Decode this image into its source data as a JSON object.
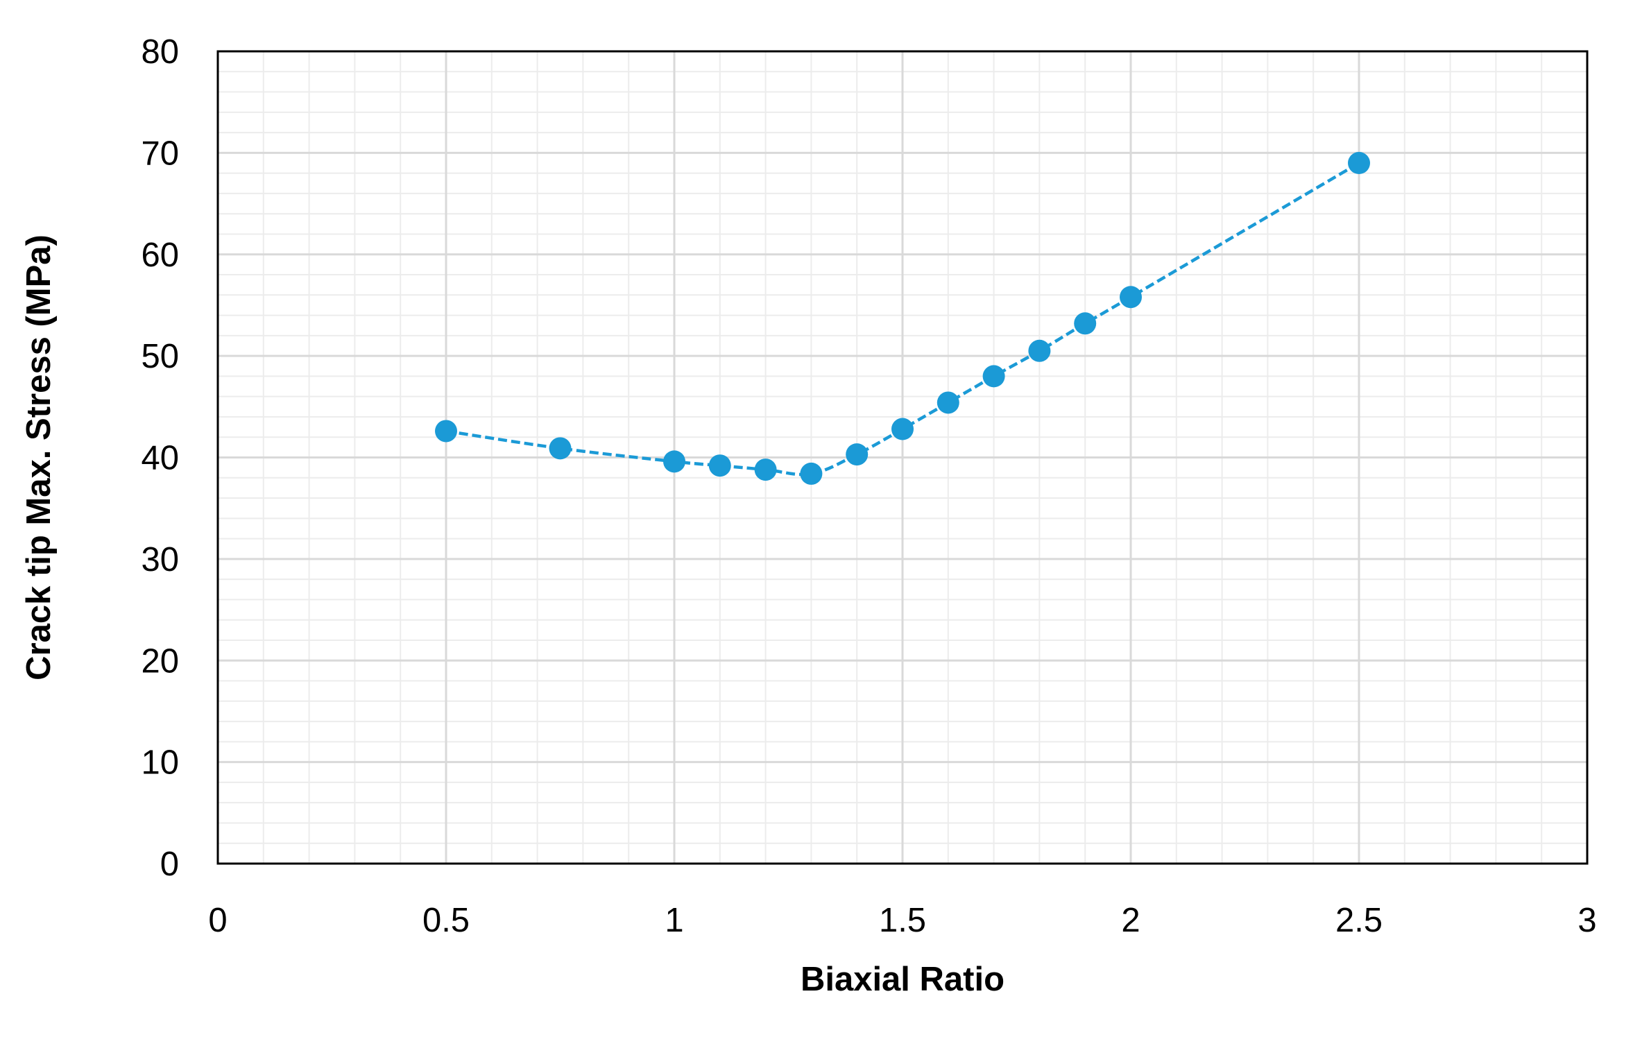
{
  "chart_data": {
    "type": "scatter",
    "title": "",
    "xlabel": "Biaxial Ratio",
    "ylabel": "Crack tip Max. Stress (MPa)",
    "xlim": [
      0,
      3
    ],
    "ylim": [
      0,
      80
    ],
    "x_ticks": [
      "0",
      "0.5",
      "1",
      "1.5",
      "2",
      "2.5",
      "3"
    ],
    "y_ticks": [
      "0",
      "10",
      "20",
      "30",
      "40",
      "50",
      "60",
      "70",
      "80"
    ],
    "grid": {
      "major": true,
      "minor": true
    },
    "legend": "none",
    "series": [
      {
        "color": "#1b9ad6",
        "line_style": "dashed",
        "marker": "circle",
        "points": [
          {
            "x": 0.5,
            "y": 42.6
          },
          {
            "x": 0.75,
            "y": 40.9
          },
          {
            "x": 1.0,
            "y": 39.6
          },
          {
            "x": 1.1,
            "y": 39.2
          },
          {
            "x": 1.2,
            "y": 38.8
          },
          {
            "x": 1.3,
            "y": 38.4
          },
          {
            "x": 1.4,
            "y": 40.3
          },
          {
            "x": 1.5,
            "y": 42.8
          },
          {
            "x": 1.6,
            "y": 45.4
          },
          {
            "x": 1.7,
            "y": 48.0
          },
          {
            "x": 1.8,
            "y": 50.5
          },
          {
            "x": 1.9,
            "y": 53.2
          },
          {
            "x": 2.0,
            "y": 55.8
          },
          {
            "x": 2.5,
            "y": 69.0
          }
        ]
      }
    ]
  }
}
